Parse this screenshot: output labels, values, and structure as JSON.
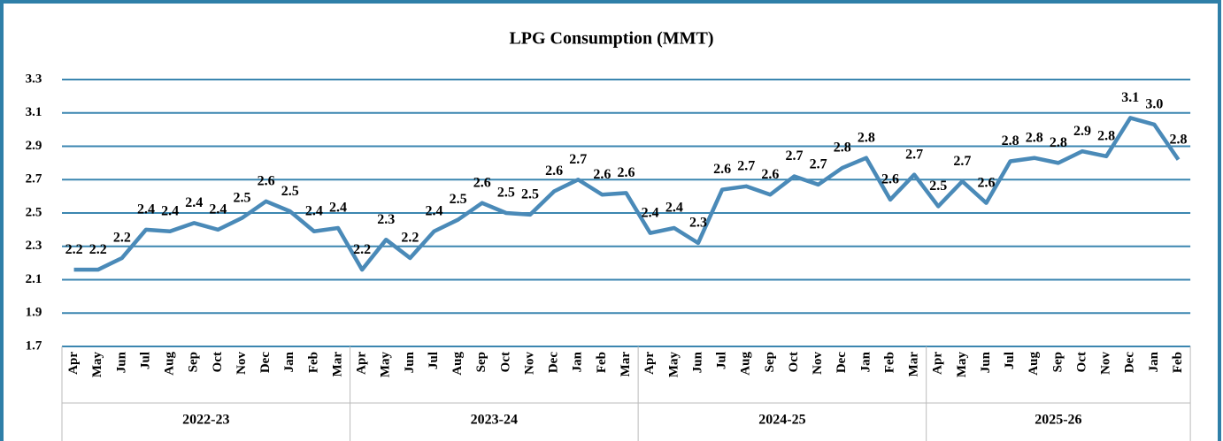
{
  "chart_data": {
    "type": "line",
    "title": "LPG Consumption (MMT)",
    "groups": [
      {
        "label": "2022-23",
        "categories": [
          "Apr",
          "May",
          "Jun",
          "Jul",
          "Aug",
          "Sep",
          "Oct",
          "Nov",
          "Dec",
          "Jan",
          "Feb",
          "Mar"
        ]
      },
      {
        "label": "2023-24",
        "categories": [
          "Apr",
          "May",
          "Jun",
          "Jul",
          "Aug",
          "Sep",
          "Oct",
          "Nov",
          "Dec",
          "Jan",
          "Feb",
          "Mar"
        ]
      },
      {
        "label": "2024-25",
        "categories": [
          "Apr",
          "May",
          "Jun",
          "Jul",
          "Aug",
          "Sep",
          "Oct",
          "Nov",
          "Dec",
          "Jan",
          "Feb",
          "Mar"
        ]
      },
      {
        "label": "2025-26",
        "categories": [
          "Apr",
          "May",
          "Jun",
          "Jul",
          "Aug",
          "Sep",
          "Oct",
          "Nov",
          "Dec",
          "Jan",
          "Feb"
        ]
      }
    ],
    "series": [
      {
        "color": "#4a8ab8",
        "values": [
          2.16,
          2.16,
          2.23,
          2.4,
          2.39,
          2.44,
          2.4,
          2.47,
          2.57,
          2.51,
          2.39,
          2.41,
          2.16,
          2.34,
          2.23,
          2.39,
          2.46,
          2.56,
          2.5,
          2.49,
          2.63,
          2.7,
          2.61,
          2.62,
          2.38,
          2.41,
          2.32,
          2.64,
          2.66,
          2.61,
          2.72,
          2.67,
          2.77,
          2.83,
          2.58,
          2.73,
          2.54,
          2.69,
          2.56,
          2.81,
          2.83,
          2.8,
          2.87,
          2.84,
          3.07,
          3.03,
          2.82
        ],
        "value_labels": [
          "2.2",
          "2.2",
          "2.2",
          "2.4",
          "2.4",
          "2.4",
          "2.4",
          "2.5",
          "2.6",
          "2.5",
          "2.4",
          "2.4",
          "2.2",
          "2.3",
          "2.2",
          "2.4",
          "2.5",
          "2.6",
          "2.5",
          "2.5",
          "2.6",
          "2.7",
          "2.6",
          "2.6",
          "2.4",
          "2.4",
          "2.3",
          "2.6",
          "2.7",
          "2.6",
          "2.7",
          "2.7",
          "2.8",
          "2.8",
          "2.6",
          "2.7",
          "2.5",
          "2.7",
          "2.6",
          "2.8",
          "2.8",
          "2.8",
          "2.9",
          "2.8",
          "3.1",
          "3.0",
          "2.8"
        ]
      }
    ],
    "ylim": [
      1.7,
      3.3
    ],
    "yticks": [
      1.7,
      1.9,
      2.1,
      2.3,
      2.5,
      2.7,
      2.9,
      3.1,
      3.3
    ],
    "grid": true
  }
}
